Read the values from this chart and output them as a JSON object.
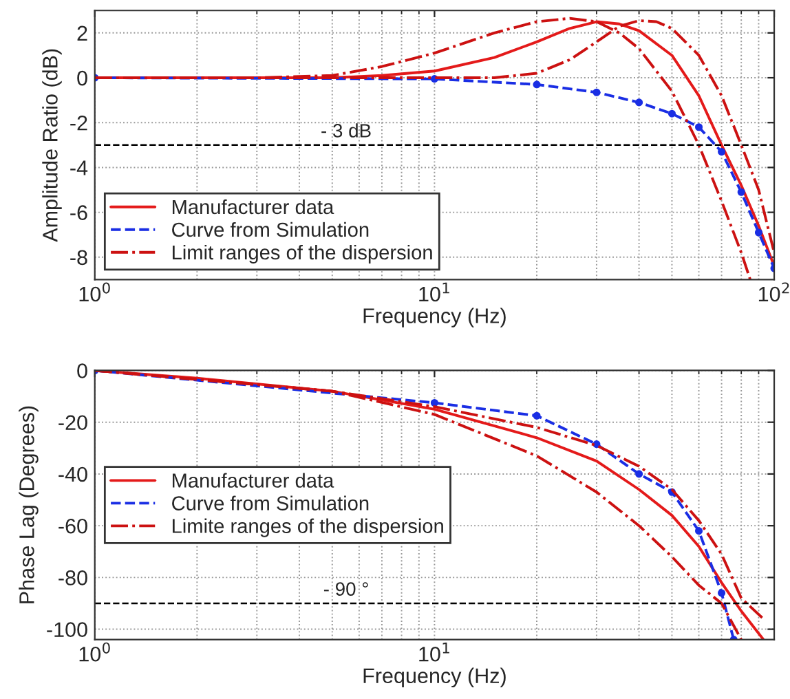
{
  "chart_data": [
    {
      "type": "line",
      "xlabel": "Frequency (Hz)",
      "ylabel": "Amplitude Ratio (dB)",
      "log": "x",
      "xlim": [
        1,
        100
      ],
      "xticks": [
        {
          "value": 1,
          "label": "10$^{0}$"
        },
        {
          "value": 10,
          "label": "10$^{1}$"
        },
        {
          "value": 100,
          "label": "10$^{2}$"
        }
      ],
      "ylim": [
        -9,
        3
      ],
      "yticks": [
        -8,
        -6,
        -4,
        -2,
        0,
        2
      ],
      "grid": true,
      "legend": "bottom left",
      "ref_lines": [
        {
          "axis": "y",
          "value": -3,
          "label": "- 3 dB",
          "color": "#000000",
          "line_style": "dashed"
        }
      ],
      "series": [
        {
          "name": "Manufacturer data",
          "color": "#e41a1a",
          "line_style": "solid",
          "marker": "none",
          "x": [
            1,
            3,
            5,
            7,
            10,
            15,
            20,
            25,
            30,
            35,
            40,
            50,
            60,
            70,
            80,
            90,
            100
          ],
          "values": [
            0,
            0,
            0,
            0.1,
            0.3,
            0.9,
            1.6,
            2.2,
            2.5,
            2.4,
            2.1,
            1.0,
            -0.8,
            -3.0,
            -4.8,
            -6.6,
            -8.4
          ]
        },
        {
          "name": "Curve from Simulation",
          "color": "#1a2ee4",
          "line_style": "dashed",
          "marker": "circle",
          "x": [
            1,
            10,
            20,
            30,
            40,
            50,
            60,
            70,
            80,
            90,
            100
          ],
          "values": [
            0,
            -0.05,
            -0.3,
            -0.65,
            -1.1,
            -1.6,
            -2.2,
            -3.3,
            -5.1,
            -6.9,
            -8.5
          ]
        },
        {
          "name": "Limit ranges of the dispersion",
          "color": "#cc1111",
          "line_style": "dashdot",
          "marker": "none",
          "x": [
            1,
            3,
            5,
            7,
            10,
            15,
            20,
            25,
            30,
            35,
            40,
            50,
            60,
            70,
            80,
            85
          ],
          "values": [
            0,
            0,
            0.1,
            0.5,
            1.1,
            2.0,
            2.5,
            2.65,
            2.5,
            2.0,
            1.3,
            -0.6,
            -3.0,
            -5.5,
            -7.8,
            -9
          ]
        },
        {
          "color": "#cc1111",
          "line_style": "dashdot",
          "marker": "none",
          "x": [
            1,
            5,
            10,
            15,
            20,
            25,
            30,
            35,
            40,
            45,
            50,
            60,
            70,
            80,
            90,
            100
          ],
          "values": [
            0,
            0,
            0,
            0,
            0.2,
            0.8,
            1.6,
            2.3,
            2.55,
            2.5,
            2.2,
            1.0,
            -0.8,
            -3.0,
            -5.0,
            -7.8
          ]
        }
      ]
    },
    {
      "type": "line",
      "xlabel": "Frequency (Hz)",
      "ylabel": "Phase Lag (Degrees)",
      "log": "x",
      "xlim": [
        1,
        100
      ],
      "xticks": [
        {
          "value": 1,
          "label": "10$^{0}$"
        },
        {
          "value": 10,
          "label": "10$^{1}$"
        }
      ],
      "ylim": [
        -104,
        0
      ],
      "yticks": [
        -100,
        -80,
        -60,
        -40,
        -20,
        0
      ],
      "grid": true,
      "legend": "left",
      "ref_lines": [
        {
          "axis": "y",
          "value": -90,
          "label": "- 90 °",
          "color": "#000000",
          "line_style": "dashed"
        }
      ],
      "series": [
        {
          "name": "Manufacturer data",
          "color": "#e41a1a",
          "line_style": "solid",
          "marker": "none",
          "x": [
            1,
            2,
            5,
            10,
            20,
            30,
            40,
            50,
            60,
            70,
            80,
            93
          ],
          "values": [
            0,
            -3,
            -8,
            -15,
            -26,
            -35,
            -46,
            -56,
            -68,
            -82,
            -93,
            -104
          ]
        },
        {
          "name": "Curve from Simulation",
          "color": "#1a2ee4",
          "line_style": "dashed",
          "marker": "circle",
          "x": [
            1,
            10,
            20,
            30,
            40,
            50,
            60,
            70,
            76
          ],
          "values": [
            0,
            -12.5,
            -17.5,
            -28.5,
            -40,
            -47,
            -62,
            -86,
            -104
          ]
        },
        {
          "name": "Limite ranges of the dispersion",
          "color": "#cc1111",
          "line_style": "dashdot",
          "marker": "none",
          "x": [
            1,
            5,
            10,
            20,
            30,
            40,
            50,
            60,
            70,
            80,
            93
          ],
          "values": [
            0,
            -8,
            -14,
            -22,
            -29,
            -37,
            -46,
            -58,
            -71,
            -88,
            -96
          ]
        },
        {
          "color": "#cc1111",
          "line_style": "dashdot",
          "marker": "none",
          "x": [
            1,
            5,
            10,
            20,
            30,
            40,
            50,
            60,
            70,
            80
          ],
          "values": [
            0,
            -8,
            -17,
            -33,
            -47,
            -60,
            -72,
            -83,
            -90,
            -104
          ]
        }
      ]
    }
  ]
}
